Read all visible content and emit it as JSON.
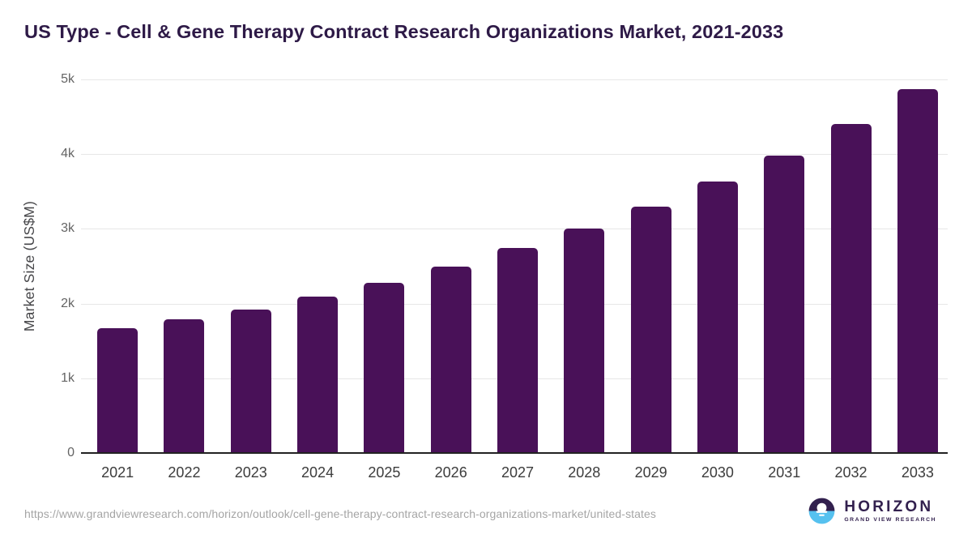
{
  "title": "US Type - Cell & Gene Therapy Contract Research Organizations Market, 2021-2033",
  "chart_data": {
    "type": "bar",
    "title": "US Type - Cell & Gene Therapy Contract Research Organizations Market, 2021-2033",
    "xlabel": "",
    "ylabel": "Market Size (US$M)",
    "categories": [
      "2021",
      "2022",
      "2023",
      "2024",
      "2025",
      "2026",
      "2027",
      "2028",
      "2029",
      "2030",
      "2031",
      "2032",
      "2033"
    ],
    "values": [
      1670,
      1785,
      1915,
      2095,
      2280,
      2500,
      2740,
      3005,
      3300,
      3630,
      3980,
      4405,
      4865
    ],
    "unit": "US$M",
    "ylim": [
      0,
      5000
    ],
    "y_ticks": [
      {
        "value": 0,
        "label": "0"
      },
      {
        "value": 1000,
        "label": "1k"
      },
      {
        "value": 2000,
        "label": "2k"
      },
      {
        "value": 3000,
        "label": "3k"
      },
      {
        "value": 4000,
        "label": "4k"
      },
      {
        "value": 5000,
        "label": "5k"
      }
    ],
    "grid": "horizontal",
    "legend": "none",
    "bar_color": "#491158"
  },
  "footer": {
    "source_url": "https://www.grandviewresearch.com/horizon/outlook/cell-gene-therapy-contract-research-organizations-market/united-states",
    "logo": {
      "brand": "HORIZON",
      "sub_brand": "GRAND VIEW RESEARCH"
    }
  },
  "colors": {
    "bar": "#491158",
    "title_text": "#2e1a47",
    "gridline": "#e7e7e7",
    "axis_line": "#222222",
    "y_tick_text": "#646464",
    "x_tick_text": "#3c3c3c",
    "url_text": "#a5a5a5",
    "logo_purple": "#32204e",
    "logo_blue": "#56c1ef"
  }
}
